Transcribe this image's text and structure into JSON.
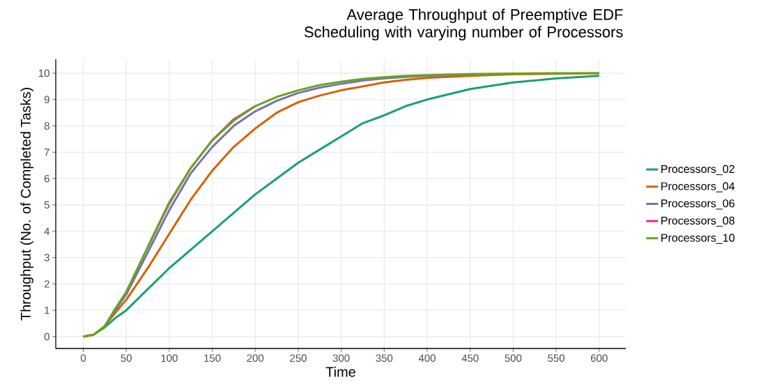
{
  "chart_data": {
    "type": "line",
    "title": "Average Throughput of Preemptive EDF Scheduling with varying number of Processors",
    "xlabel": "Time",
    "ylabel": "Throughput (No. of Completed Tasks)",
    "x": [
      0,
      12,
      25,
      37,
      50,
      75,
      100,
      125,
      150,
      175,
      200,
      225,
      250,
      275,
      300,
      325,
      350,
      375,
      400,
      450,
      500,
      550,
      600
    ],
    "series": [
      {
        "name": "Processors_02",
        "color": "#1b9e77",
        "values": [
          0,
          0.07,
          0.35,
          0.7,
          1.0,
          1.8,
          2.6,
          3.3,
          4.0,
          4.7,
          5.4,
          6.0,
          6.6,
          7.1,
          7.6,
          8.1,
          8.4,
          8.75,
          9.0,
          9.4,
          9.65,
          9.8,
          9.9
        ]
      },
      {
        "name": "Processors_04",
        "color": "#d95f02",
        "values": [
          0,
          0.07,
          0.4,
          0.9,
          1.4,
          2.6,
          3.9,
          5.2,
          6.3,
          7.2,
          7.9,
          8.5,
          8.9,
          9.15,
          9.35,
          9.5,
          9.65,
          9.75,
          9.82,
          9.9,
          9.96,
          9.98,
          10.0
        ]
      },
      {
        "name": "Processors_06",
        "color": "#7570b3",
        "values": [
          null,
          null,
          0.4,
          1.0,
          1.6,
          3.2,
          4.8,
          6.2,
          7.2,
          8.0,
          8.55,
          8.95,
          9.25,
          9.45,
          9.6,
          9.72,
          9.8,
          9.86,
          9.9,
          9.95,
          null,
          null,
          null
        ]
      },
      {
        "name": "Processors_08",
        "color": "#e7298a",
        "values": [
          null,
          null,
          null,
          null,
          null,
          3.4,
          5.05,
          6.4,
          7.45,
          8.25,
          8.75,
          null,
          null,
          null,
          null,
          null,
          null,
          null,
          null,
          null,
          null,
          null,
          null
        ]
      },
      {
        "name": "Processors_10",
        "color": "#66a61e",
        "values": [
          0,
          0.07,
          0.4,
          1.05,
          1.7,
          3.4,
          5.1,
          6.4,
          7.45,
          8.2,
          8.75,
          9.1,
          9.35,
          9.55,
          9.68,
          9.78,
          9.85,
          9.9,
          9.93,
          9.97,
          9.99,
          10.0,
          10.0
        ]
      }
    ],
    "xlim": [
      -32,
      631
    ],
    "ylim": [
      -0.45,
      10.53
    ],
    "xticks": [
      0,
      50,
      100,
      150,
      200,
      250,
      300,
      350,
      400,
      450,
      500,
      550,
      600
    ],
    "yticks": [
      0,
      1,
      2,
      3,
      4,
      5,
      6,
      7,
      8,
      9,
      10
    ],
    "grid": true,
    "legend": "right",
    "marker": "none",
    "line_style": "solid"
  }
}
